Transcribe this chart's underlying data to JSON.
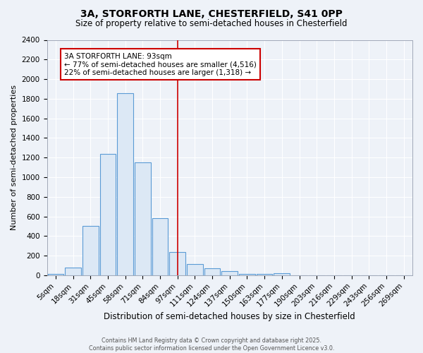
{
  "title": "3A, STORFORTH LANE, CHESTERFIELD, S41 0PP",
  "subtitle": "Size of property relative to semi-detached houses in Chesterfield",
  "xlabel": "Distribution of semi-detached houses by size in Chesterfield",
  "ylabel": "Number of semi-detached properties",
  "categories": [
    "5sqm",
    "18sqm",
    "31sqm",
    "45sqm",
    "58sqm",
    "71sqm",
    "84sqm",
    "97sqm",
    "111sqm",
    "124sqm",
    "137sqm",
    "150sqm",
    "163sqm",
    "177sqm",
    "190sqm",
    "203sqm",
    "216sqm",
    "229sqm",
    "243sqm",
    "256sqm",
    "269sqm"
  ],
  "values": [
    10,
    80,
    500,
    1240,
    1860,
    1150,
    580,
    240,
    115,
    70,
    45,
    15,
    10,
    20,
    0,
    0,
    0,
    0,
    0,
    0,
    0
  ],
  "bar_color": "#dce8f5",
  "bar_edge_color": "#5b9bd5",
  "property_label": "3A STORFORTH LANE: 93sqm",
  "pct_smaller": 77,
  "pct_larger": 22,
  "n_smaller": 4516,
  "n_larger": 1318,
  "vline_x_index": 7.0,
  "vline_color": "#cc0000",
  "annotation_box_edge": "#cc0000",
  "ylim": [
    0,
    2400
  ],
  "yticks": [
    0,
    200,
    400,
    600,
    800,
    1000,
    1200,
    1400,
    1600,
    1800,
    2000,
    2200,
    2400
  ],
  "background_color": "#eef2f8",
  "grid_color": "#ffffff",
  "title_fontsize": 10,
  "subtitle_fontsize": 8.5,
  "tick_fontsize": 7.5,
  "ylabel_fontsize": 8,
  "xlabel_fontsize": 8.5,
  "footer_line1": "Contains HM Land Registry data © Crown copyright and database right 2025.",
  "footer_line2": "Contains public sector information licensed under the Open Government Licence v3.0."
}
